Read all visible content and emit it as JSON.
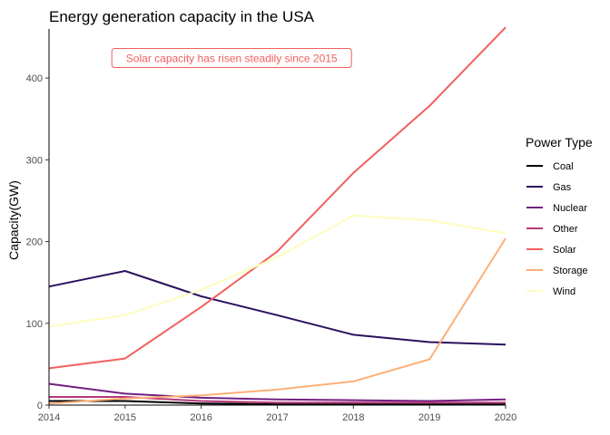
{
  "chart_data": {
    "type": "line",
    "title": "Energy generation capacity in the USA",
    "xlabel": "",
    "ylabel": "Capacity(GW)",
    "x": [
      2014,
      2015,
      2016,
      2017,
      2018,
      2019,
      2020
    ],
    "xlim": [
      2014,
      2020
    ],
    "ylim": [
      0,
      460
    ],
    "yticks": [
      0,
      100,
      200,
      300,
      400
    ],
    "grid": false,
    "legend": {
      "title": "Power Type",
      "position": "right"
    },
    "annotation": {
      "text": "Solar capacity has risen steadily since 2015",
      "x": 2016.4,
      "y": 424
    },
    "series": [
      {
        "name": "Coal",
        "color": "#000004",
        "values": [
          5,
          5,
          2,
          1,
          1,
          1,
          1
        ]
      },
      {
        "name": "Gas",
        "color": "#2c115f",
        "values": [
          145,
          164,
          133,
          110,
          86,
          77,
          74
        ]
      },
      {
        "name": "Nuclear",
        "color": "#721f81",
        "values": [
          26,
          14,
          9,
          7,
          6,
          5,
          7
        ]
      },
      {
        "name": "Other",
        "color": "#b73779",
        "values": [
          10,
          10,
          5,
          3,
          3,
          3,
          3
        ]
      },
      {
        "name": "Solar",
        "color": "#f1605d",
        "values": [
          45,
          57,
          120,
          188,
          284,
          366,
          462
        ]
      },
      {
        "name": "Storage",
        "color": "#feaf77",
        "values": [
          2,
          8,
          12,
          19,
          29,
          56,
          204
        ]
      },
      {
        "name": "Wind",
        "color": "#fcfdbf",
        "values": [
          96,
          110,
          141,
          181,
          232,
          226,
          210
        ]
      }
    ]
  }
}
